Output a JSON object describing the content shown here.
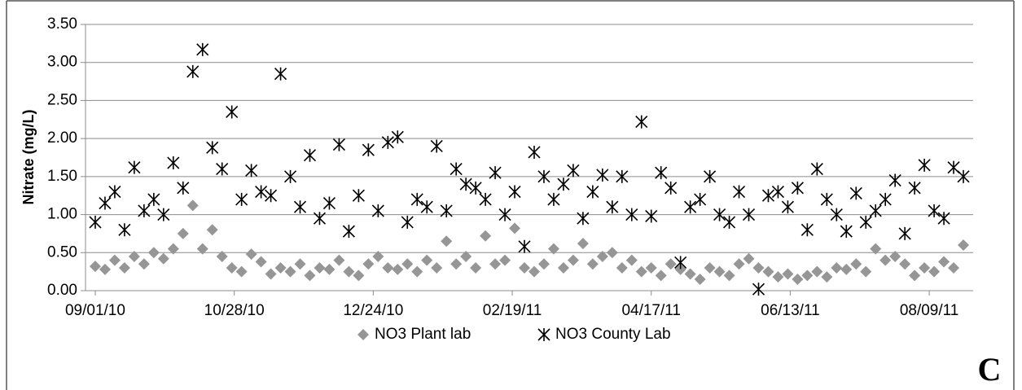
{
  "chart_data": {
    "type": "scatter",
    "y_label": "Nitrate (mg/L)",
    "panel_label": "C",
    "x": [
      "09/01/10",
      "09/05/10",
      "09/09/10",
      "09/13/10",
      "09/17/10",
      "09/21/10",
      "09/25/10",
      "09/29/10",
      "10/03/10",
      "10/07/10",
      "10/11/10",
      "10/15/10",
      "10/19/10",
      "10/23/10",
      "10/27/10",
      "10/31/10",
      "11/04/10",
      "11/08/10",
      "11/12/10",
      "11/16/10",
      "11/20/10",
      "11/24/10",
      "11/28/10",
      "12/02/10",
      "12/06/10",
      "12/10/10",
      "12/14/10",
      "12/18/10",
      "12/22/10",
      "12/26/10",
      "12/30/10",
      "01/03/11",
      "01/07/11",
      "01/11/11",
      "01/15/11",
      "01/19/11",
      "01/23/11",
      "01/27/11",
      "01/31/11",
      "02/04/11",
      "02/08/11",
      "02/12/11",
      "02/16/11",
      "02/20/11",
      "02/24/11",
      "02/28/11",
      "03/04/11",
      "03/08/11",
      "03/12/11",
      "03/16/11",
      "03/20/11",
      "03/24/11",
      "03/28/11",
      "04/01/11",
      "04/05/11",
      "04/09/11",
      "04/13/11",
      "04/17/11",
      "04/21/11",
      "04/25/11",
      "04/29/11",
      "05/03/11",
      "05/07/11",
      "05/11/11",
      "05/15/11",
      "05/19/11",
      "05/23/11",
      "05/27/11",
      "05/31/11",
      "06/04/11",
      "06/08/11",
      "06/12/11",
      "06/16/11",
      "06/20/11",
      "06/24/11",
      "06/28/11",
      "07/02/11",
      "07/06/11",
      "07/10/11",
      "07/14/11",
      "07/18/11",
      "07/22/11",
      "07/26/11",
      "07/30/11",
      "08/03/11",
      "08/07/11",
      "08/11/11",
      "08/15/11",
      "08/19/11",
      "08/23/11"
    ],
    "series": [
      {
        "name": "NO3 Plant lab",
        "color": "#969696",
        "marker": "diamond",
        "values": [
          0.32,
          0.28,
          0.4,
          0.3,
          0.45,
          0.35,
          0.5,
          0.42,
          0.55,
          0.75,
          1.12,
          0.55,
          0.8,
          0.45,
          0.3,
          0.25,
          0.48,
          0.38,
          0.22,
          0.3,
          0.25,
          0.35,
          0.2,
          0.3,
          0.28,
          0.4,
          0.25,
          0.2,
          0.35,
          0.45,
          0.3,
          0.28,
          0.35,
          0.25,
          0.4,
          0.3,
          0.65,
          0.35,
          0.45,
          0.3,
          0.72,
          0.35,
          0.4,
          0.82,
          0.3,
          0.25,
          0.35,
          0.55,
          0.3,
          0.4,
          0.62,
          0.35,
          0.45,
          0.5,
          0.3,
          0.4,
          0.25,
          0.3,
          0.2,
          0.35,
          0.28,
          0.22,
          0.15,
          0.3,
          0.25,
          0.2,
          0.35,
          0.42,
          0.3,
          0.25,
          0.18,
          0.22,
          0.15,
          0.2,
          0.25,
          0.18,
          0.3,
          0.28,
          0.35,
          0.25,
          0.55,
          0.4,
          0.45,
          0.35,
          0.2,
          0.3,
          0.25,
          0.38,
          0.3,
          0.6
        ]
      },
      {
        "name": "NO3 County Lab",
        "color": "#000000",
        "marker": "asterisk",
        "values": [
          0.9,
          1.15,
          1.3,
          0.8,
          1.62,
          1.05,
          1.2,
          1.0,
          1.68,
          1.35,
          2.88,
          3.17,
          1.88,
          1.6,
          2.35,
          1.2,
          1.58,
          1.3,
          1.25,
          2.85,
          1.5,
          1.1,
          1.78,
          0.95,
          1.15,
          1.92,
          0.78,
          1.25,
          1.85,
          1.05,
          1.95,
          2.02,
          0.9,
          1.2,
          1.1,
          1.9,
          1.05,
          1.6,
          1.4,
          1.35,
          1.2,
          1.55,
          1.0,
          1.3,
          0.58,
          1.82,
          1.5,
          1.2,
          1.4,
          1.58,
          0.95,
          1.3,
          1.52,
          1.1,
          1.5,
          1.0,
          2.22,
          0.98,
          1.55,
          1.35,
          0.37,
          1.1,
          1.2,
          1.5,
          1.0,
          0.9,
          1.3,
          1.0,
          0.02,
          1.25,
          1.3,
          1.1,
          1.35,
          0.8,
          1.6,
          1.2,
          1.0,
          0.78,
          1.28,
          0.9,
          1.05,
          1.2,
          1.45,
          0.75,
          1.35,
          1.65,
          1.05,
          0.95,
          1.62,
          1.5
        ]
      }
    ],
    "xlim": [
      "08/28/10",
      "08/27/11"
    ],
    "xticks": [
      "09/01/10",
      "10/28/10",
      "12/24/10",
      "02/19/11",
      "04/17/11",
      "06/13/11",
      "08/09/11"
    ],
    "ylim": [
      0,
      3.5
    ],
    "yticks": [
      {
        "value": 0,
        "label": "0.00"
      },
      {
        "value": 0.5,
        "label": "0.50"
      },
      {
        "value": 1,
        "label": "1.00"
      },
      {
        "value": 1.5,
        "label": "1.50"
      },
      {
        "value": 2,
        "label": "2.00"
      },
      {
        "value": 2.5,
        "label": "2.50"
      },
      {
        "value": 3,
        "label": "3.00"
      },
      {
        "value": 3.5,
        "label": "3.50"
      }
    ],
    "grid": true,
    "legend": "bottom"
  }
}
